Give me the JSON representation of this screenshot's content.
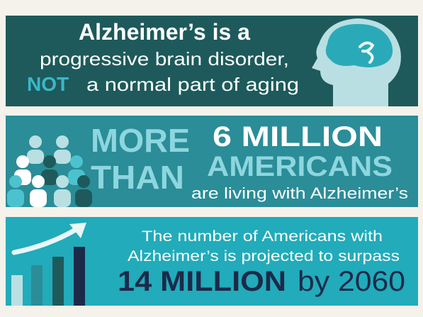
{
  "panels": [
    {
      "line1": "Alzheimer’s is a",
      "line2": "progressive brain disorder,",
      "highlight": "NOT",
      "line3": "a normal part of aging"
    },
    {
      "lead": [
        "MORE",
        "THAN"
      ],
      "figure": "6 MILLION",
      "noun": "AMERICANS",
      "tail": "are living with Alzheimer’s"
    },
    {
      "line1": "The number of Americans with",
      "line2": "Alzheimer’s is projected to surpass",
      "figure": "14 MILLION",
      "tail": "by 2060"
    }
  ]
}
